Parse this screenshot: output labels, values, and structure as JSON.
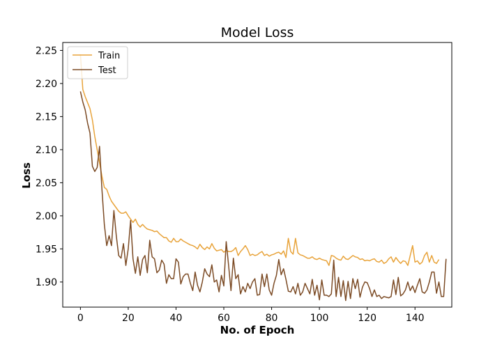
{
  "chart_data": {
    "type": "line",
    "title": "Model Loss",
    "xlabel": "No. of Epoch",
    "ylabel": "Loss",
    "xlim": [
      -7.4,
      155.4
    ],
    "ylim": [
      1.862,
      2.262
    ],
    "x_ticks": [
      0,
      20,
      40,
      60,
      80,
      100,
      120,
      140
    ],
    "y_ticks": [
      1.9,
      1.95,
      2.0,
      2.05,
      2.1,
      2.15,
      2.2,
      2.25
    ],
    "x_tick_labels": [
      "0",
      "20",
      "40",
      "60",
      "80",
      "100",
      "120",
      "140"
    ],
    "y_tick_labels": [
      "1.90",
      "1.95",
      "2.00",
      "2.05",
      "2.10",
      "2.15",
      "2.20",
      "2.25"
    ],
    "grid": false,
    "legend_position": "top-left",
    "series": [
      {
        "name": "Train",
        "color": "#E8A33A",
        "values": [
          2.244,
          2.191,
          2.18,
          2.171,
          2.162,
          2.145,
          2.12,
          2.1,
          2.08,
          2.06,
          2.043,
          2.04,
          2.03,
          2.022,
          2.017,
          2.012,
          2.007,
          2.004,
          2.004,
          2.006,
          2.0,
          1.995,
          1.99,
          1.995,
          1.987,
          1.983,
          1.987,
          1.983,
          1.98,
          1.979,
          1.978,
          1.976,
          1.977,
          1.973,
          1.97,
          1.967,
          1.967,
          1.962,
          1.96,
          1.966,
          1.961,
          1.961,
          1.965,
          1.962,
          1.96,
          1.958,
          1.956,
          1.955,
          1.953,
          1.95,
          1.957,
          1.952,
          1.949,
          1.953,
          1.95,
          1.958,
          1.951,
          1.947,
          1.948,
          1.949,
          1.945,
          1.948,
          1.946,
          1.946,
          1.948,
          1.952,
          1.94,
          1.946,
          1.95,
          1.955,
          1.949,
          1.94,
          1.942,
          1.94,
          1.941,
          1.944,
          1.946,
          1.94,
          1.942,
          1.939,
          1.941,
          1.942,
          1.944,
          1.945,
          1.942,
          1.947,
          1.937,
          1.966,
          1.946,
          1.942,
          1.966,
          1.944,
          1.941,
          1.94,
          1.938,
          1.936,
          1.936,
          1.938,
          1.935,
          1.934,
          1.936,
          1.934,
          1.933,
          1.932,
          1.925,
          1.94,
          1.939,
          1.936,
          1.934,
          1.933,
          1.939,
          1.935,
          1.934,
          1.937,
          1.94,
          1.938,
          1.937,
          1.934,
          1.935,
          1.932,
          1.933,
          1.932,
          1.934,
          1.935,
          1.931,
          1.93,
          1.933,
          1.928,
          1.93,
          1.935,
          1.938,
          1.93,
          1.937,
          1.932,
          1.928,
          1.932,
          1.931,
          1.925,
          1.94,
          1.955,
          1.93,
          1.932,
          1.927,
          1.93,
          1.94,
          1.945,
          1.93,
          1.94,
          1.93,
          1.928,
          1.934
        ]
      },
      {
        "name": "Test",
        "color": "#7B4A24",
        "values": [
          2.188,
          2.172,
          2.16,
          2.14,
          2.125,
          2.075,
          2.067,
          2.073,
          2.105,
          2.04,
          1.987,
          1.955,
          1.97,
          1.955,
          2.008,
          1.97,
          1.94,
          1.936,
          1.958,
          1.925,
          1.95,
          1.993,
          1.935,
          1.913,
          1.938,
          1.91,
          1.934,
          1.94,
          1.914,
          1.963,
          1.938,
          1.935,
          1.914,
          1.918,
          1.933,
          1.927,
          1.898,
          1.911,
          1.905,
          1.905,
          1.935,
          1.93,
          1.897,
          1.908,
          1.912,
          1.912,
          1.898,
          1.887,
          1.915,
          1.895,
          1.885,
          1.9,
          1.92,
          1.912,
          1.908,
          1.926,
          1.9,
          1.903,
          1.885,
          1.91,
          1.894,
          1.961,
          1.925,
          1.887,
          1.936,
          1.905,
          1.911,
          1.882,
          1.893,
          1.885,
          1.898,
          1.89,
          1.9,
          1.905,
          1.88,
          1.881,
          1.912,
          1.893,
          1.912,
          1.888,
          1.88,
          1.898,
          1.91,
          1.934,
          1.911,
          1.92,
          1.904,
          1.886,
          1.885,
          1.893,
          1.882,
          1.898,
          1.88,
          1.885,
          1.898,
          1.89,
          1.882,
          1.904,
          1.88,
          1.895,
          1.873,
          1.903,
          1.88,
          1.88,
          1.878,
          1.882,
          1.933,
          1.878,
          1.907,
          1.878,
          1.902,
          1.872,
          1.901,
          1.875,
          1.905,
          1.89,
          1.904,
          1.877,
          1.892,
          1.9,
          1.899,
          1.89,
          1.878,
          1.888,
          1.878,
          1.88,
          1.875,
          1.878,
          1.877,
          1.876,
          1.878,
          1.903,
          1.881,
          1.907,
          1.879,
          1.882,
          1.888,
          1.9,
          1.887,
          1.894,
          1.884,
          1.895,
          1.905,
          1.885,
          1.883,
          1.888,
          1.9,
          1.915,
          1.915,
          1.883,
          1.9,
          1.878,
          1.878,
          1.935
        ]
      }
    ]
  }
}
